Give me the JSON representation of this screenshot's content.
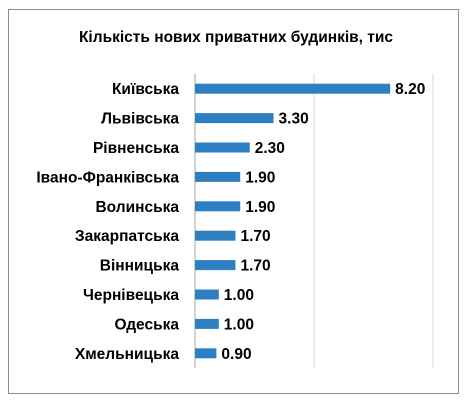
{
  "chart_data": {
    "type": "bar",
    "orientation": "horizontal",
    "title": "Кількість нових приватних будинків, тис",
    "categories": [
      "Київська",
      "Львівська",
      "Рівненська",
      "Івано-Франківська",
      "Волинська",
      "Закарпатська",
      "Вінницька",
      "Чернівецька",
      "Одеська",
      "Хмельницька"
    ],
    "values": [
      8.2,
      3.3,
      2.3,
      1.9,
      1.9,
      1.7,
      1.7,
      1.0,
      1.0,
      0.9
    ],
    "value_labels": [
      "8.20",
      "3.30",
      "2.30",
      "1.90",
      "1.90",
      "1.70",
      "1.70",
      "1.00",
      "1.00",
      "0.90"
    ],
    "xlim": [
      0,
      10
    ],
    "grid": true,
    "bar_color": "#2e7fc1",
    "grid_color": "#d9d9d9",
    "axis_color": "#a6a6a6"
  }
}
